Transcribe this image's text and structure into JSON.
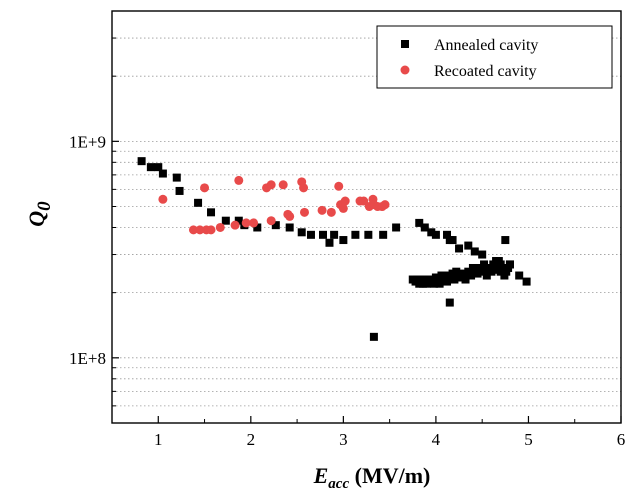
{
  "chart_data": {
    "type": "scatter",
    "xlabel_main": "E",
    "xlabel_sub": "acc",
    "xlabel_unit": " (MV/m)",
    "ylabel_main": "Q",
    "ylabel_sub": "0",
    "xlim": [
      0.5,
      6
    ],
    "ylim": [
      50000000,
      4000000000
    ],
    "y_scale": "log",
    "x_ticks": [
      "1",
      "2",
      "3",
      "4",
      "5",
      "6"
    ],
    "y_tick_labels": [
      "1E+8",
      "1E+9"
    ],
    "grid": "horizontal dotted at minor log ticks",
    "legend_position": "top-right",
    "series": [
      {
        "name": "Annealed cavity",
        "marker": "square",
        "color": "#000000",
        "x": [
          0.82,
          0.92,
          1.0,
          1.05,
          1.2,
          1.23,
          1.43,
          1.57,
          1.73,
          1.87,
          1.93,
          2.07,
          2.27,
          2.42,
          2.55,
          2.65,
          2.78,
          2.85,
          2.9,
          3.0,
          3.13,
          3.27,
          3.33,
          3.43,
          3.57,
          3.75,
          3.78,
          3.8,
          3.82,
          3.83,
          3.85,
          3.86,
          3.88,
          3.9,
          3.92,
          3.94,
          3.96,
          3.98,
          4.0,
          4.02,
          4.04,
          4.06,
          4.08,
          4.1,
          4.12,
          4.14,
          4.16,
          4.18,
          4.2,
          4.22,
          4.25,
          4.28,
          4.3,
          4.32,
          4.35,
          4.38,
          4.4,
          4.42,
          4.45,
          4.47,
          4.5,
          4.52,
          4.55,
          4.57,
          4.6,
          4.62,
          4.64,
          4.66,
          4.68,
          4.7,
          4.72,
          4.74,
          4.76,
          4.78,
          4.8,
          3.82,
          3.88,
          3.95,
          4.0,
          4.12,
          4.15,
          4.18,
          4.25,
          4.35,
          4.42,
          4.5,
          4.62,
          4.65,
          4.7,
          4.75,
          4.8,
          4.9,
          4.98,
          4.1,
          4.15
        ],
        "y": [
          810000000.0,
          760000000.0,
          760000000.0,
          710000000.0,
          680000000.0,
          590000000.0,
          520000000.0,
          470000000.0,
          430000000.0,
          430000000.0,
          410000000.0,
          400000000.0,
          410000000.0,
          400000000.0,
          380000000.0,
          370000000.0,
          370000000.0,
          340000000.0,
          370000000.0,
          350000000.0,
          370000000.0,
          370000000.0,
          125000000.0,
          370000000.0,
          400000000.0,
          230000000.0,
          225000000.0,
          230000000.0,
          220000000.0,
          230000000.0,
          225000000.0,
          220000000.0,
          230000000.0,
          220000000.0,
          230000000.0,
          225000000.0,
          230000000.0,
          220000000.0,
          235000000.0,
          230000000.0,
          220000000.0,
          240000000.0,
          230000000.0,
          235000000.0,
          225000000.0,
          240000000.0,
          230000000.0,
          245000000.0,
          230000000.0,
          250000000.0,
          235000000.0,
          240000000.0,
          245000000.0,
          230000000.0,
          250000000.0,
          240000000.0,
          260000000.0,
          250000000.0,
          245000000.0,
          260000000.0,
          250000000.0,
          270000000.0,
          240000000.0,
          260000000.0,
          250000000.0,
          270000000.0,
          255000000.0,
          260000000.0,
          280000000.0,
          250000000.0,
          260000000.0,
          240000000.0,
          250000000.0,
          260000000.0,
          270000000.0,
          420000000.0,
          400000000.0,
          380000000.0,
          370000000.0,
          370000000.0,
          350000000.0,
          350000000.0,
          320000000.0,
          330000000.0,
          310000000.0,
          300000000.0,
          260000000.0,
          280000000.0,
          270000000.0,
          350000000.0,
          270000000.0,
          240000000.0,
          225000000.0,
          230000000.0,
          180000000.0
        ]
      },
      {
        "name": "Recoated cavity",
        "marker": "circle",
        "color": "#e84a4a",
        "x": [
          1.05,
          1.38,
          1.45,
          1.5,
          1.52,
          1.57,
          1.67,
          1.83,
          1.87,
          1.95,
          2.03,
          2.17,
          2.22,
          2.35,
          2.42,
          2.55,
          2.57,
          2.58,
          2.77,
          2.87,
          2.95,
          2.97,
          3.0,
          3.02,
          3.18,
          3.22,
          3.28,
          3.32,
          3.33,
          3.37,
          3.42,
          3.45,
          2.4,
          2.22
        ],
        "y": [
          540000000.0,
          390000000.0,
          390000000.0,
          610000000.0,
          390000000.0,
          390000000.0,
          400000000.0,
          410000000.0,
          660000000.0,
          420000000.0,
          420000000.0,
          610000000.0,
          630000000.0,
          630000000.0,
          450000000.0,
          650000000.0,
          610000000.0,
          470000000.0,
          480000000.0,
          470000000.0,
          620000000.0,
          510000000.0,
          490000000.0,
          530000000.0,
          530000000.0,
          530000000.0,
          500000000.0,
          540000000.0,
          510000000.0,
          500000000.0,
          500000000.0,
          510000000.0,
          460000000.0,
          430000000.0
        ]
      }
    ]
  }
}
